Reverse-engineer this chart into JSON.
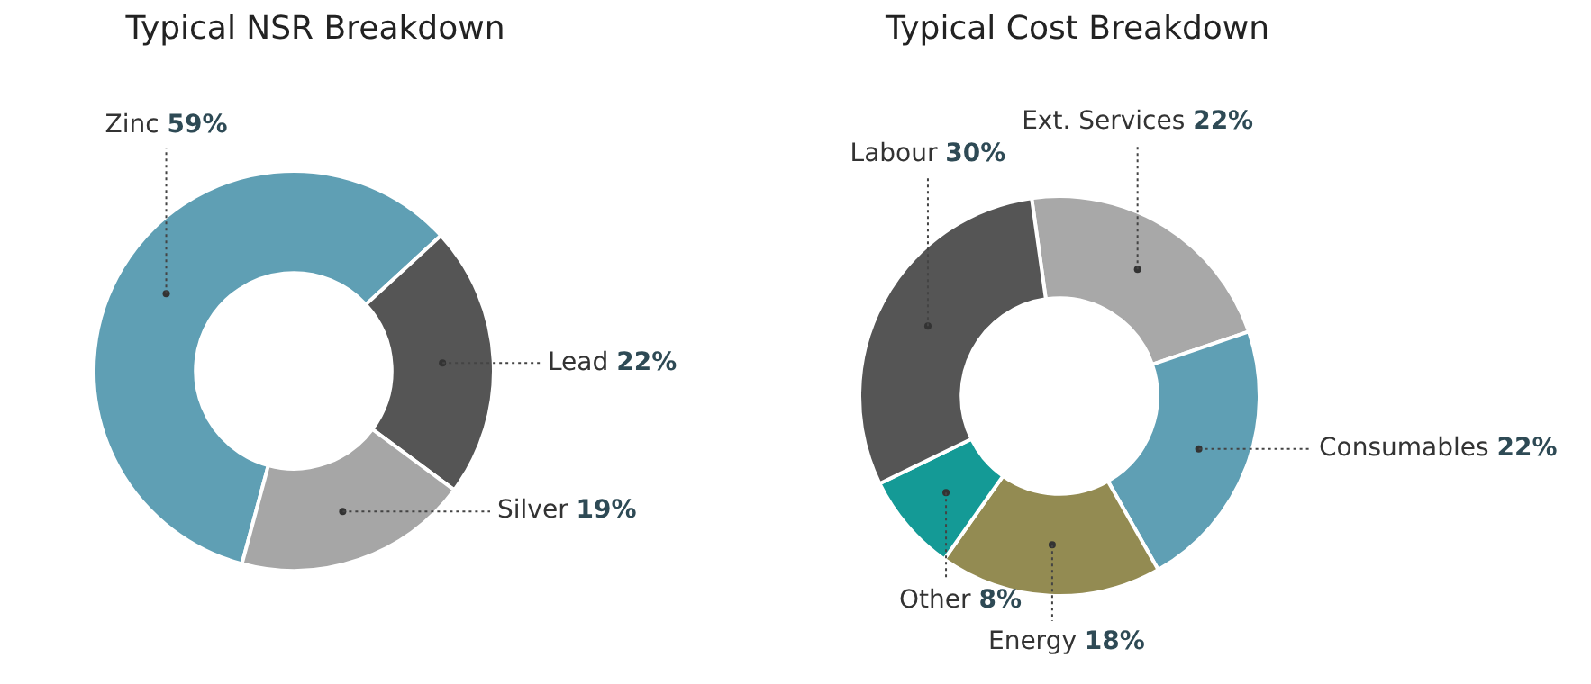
{
  "chart_data": [
    {
      "type": "donut",
      "title": "Typical NSR Breakdown",
      "categories": [
        "Zinc",
        "Lead",
        "Silver"
      ],
      "values": [
        59,
        22,
        19
      ],
      "value_labels": [
        "59%",
        "22%",
        "19%"
      ],
      "colors": [
        "#5f9fb4",
        "#555555",
        "#a6a6a6"
      ],
      "legend": false
    },
    {
      "type": "donut",
      "title": "Typical Cost Breakdown",
      "categories": [
        "Ext. Services",
        "Consumables",
        "Energy",
        "Other",
        "Labour"
      ],
      "values": [
        22,
        22,
        18,
        8,
        30
      ],
      "value_labels": [
        "22%",
        "22%",
        "18%",
        "8%",
        "30%"
      ],
      "colors": [
        "#a8a8a8",
        "#5f9fb4",
        "#938b52",
        "#149a96",
        "#555555"
      ],
      "legend": false
    }
  ]
}
